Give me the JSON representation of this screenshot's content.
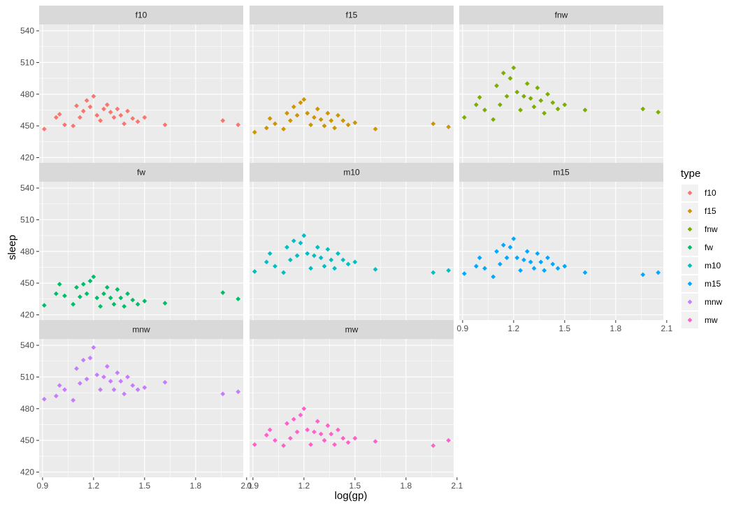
{
  "chart_data": {
    "type": "scatter",
    "xlabel": "log(gp)",
    "ylabel": "sleep",
    "xlim": [
      0.88,
      2.08
    ],
    "ylim": [
      415,
      546
    ],
    "xticks": [
      0.9,
      1.2,
      1.5,
      1.8,
      2.1
    ],
    "xtick_labels": [
      "0.9",
      "1.2",
      "1.5",
      "1.8",
      "2.1"
    ],
    "yticks": [
      420,
      450,
      480,
      510,
      540
    ],
    "ytick_labels": [
      "420",
      "450",
      "480",
      "510",
      "540"
    ],
    "grid": true,
    "facet_panels": [
      "f10",
      "f15",
      "fnw",
      "fw",
      "m10",
      "m15",
      "mnw",
      "mw"
    ],
    "legend": {
      "title": "type",
      "position": "right"
    },
    "series": [
      {
        "name": "f10",
        "color": "#F8766D",
        "points": [
          [
            0.91,
            447
          ],
          [
            0.98,
            458
          ],
          [
            1.0,
            461
          ],
          [
            1.03,
            451
          ],
          [
            1.08,
            450
          ],
          [
            1.1,
            469
          ],
          [
            1.12,
            458
          ],
          [
            1.14,
            464
          ],
          [
            1.16,
            474
          ],
          [
            1.18,
            468
          ],
          [
            1.2,
            478
          ],
          [
            1.22,
            460
          ],
          [
            1.24,
            455
          ],
          [
            1.26,
            466
          ],
          [
            1.28,
            470
          ],
          [
            1.3,
            463
          ],
          [
            1.32,
            458
          ],
          [
            1.34,
            466
          ],
          [
            1.36,
            460
          ],
          [
            1.38,
            452
          ],
          [
            1.4,
            464
          ],
          [
            1.43,
            457
          ],
          [
            1.46,
            454
          ],
          [
            1.5,
            458
          ],
          [
            1.62,
            451
          ],
          [
            1.96,
            455
          ],
          [
            2.05,
            451
          ]
        ]
      },
      {
        "name": "f15",
        "color": "#CD9600",
        "points": [
          [
            0.91,
            444
          ],
          [
            0.98,
            448
          ],
          [
            1.0,
            457
          ],
          [
            1.03,
            452
          ],
          [
            1.08,
            447
          ],
          [
            1.1,
            462
          ],
          [
            1.12,
            455
          ],
          [
            1.14,
            468
          ],
          [
            1.16,
            460
          ],
          [
            1.18,
            472
          ],
          [
            1.2,
            475
          ],
          [
            1.22,
            462
          ],
          [
            1.24,
            451
          ],
          [
            1.26,
            458
          ],
          [
            1.28,
            466
          ],
          [
            1.3,
            456
          ],
          [
            1.32,
            450
          ],
          [
            1.34,
            462
          ],
          [
            1.36,
            455
          ],
          [
            1.38,
            448
          ],
          [
            1.4,
            460
          ],
          [
            1.43,
            455
          ],
          [
            1.46,
            451
          ],
          [
            1.5,
            453
          ],
          [
            1.62,
            447
          ],
          [
            1.96,
            452
          ],
          [
            2.05,
            449
          ]
        ]
      },
      {
        "name": "fnw",
        "color": "#7CAE00",
        "points": [
          [
            0.91,
            458
          ],
          [
            0.98,
            470
          ],
          [
            1.0,
            477
          ],
          [
            1.03,
            465
          ],
          [
            1.08,
            456
          ],
          [
            1.1,
            488
          ],
          [
            1.12,
            470
          ],
          [
            1.14,
            500
          ],
          [
            1.16,
            478
          ],
          [
            1.18,
            495
          ],
          [
            1.2,
            505
          ],
          [
            1.22,
            482
          ],
          [
            1.24,
            465
          ],
          [
            1.26,
            478
          ],
          [
            1.28,
            490
          ],
          [
            1.3,
            476
          ],
          [
            1.32,
            468
          ],
          [
            1.34,
            486
          ],
          [
            1.36,
            474
          ],
          [
            1.38,
            462
          ],
          [
            1.4,
            480
          ],
          [
            1.43,
            472
          ],
          [
            1.46,
            466
          ],
          [
            1.5,
            470
          ],
          [
            1.62,
            465
          ],
          [
            1.96,
            466
          ],
          [
            2.05,
            463
          ]
        ]
      },
      {
        "name": "fw",
        "color": "#00BE67",
        "points": [
          [
            0.91,
            429
          ],
          [
            0.98,
            440
          ],
          [
            1.0,
            449
          ],
          [
            1.03,
            438
          ],
          [
            1.08,
            430
          ],
          [
            1.1,
            446
          ],
          [
            1.12,
            437
          ],
          [
            1.14,
            449
          ],
          [
            1.16,
            440
          ],
          [
            1.18,
            452
          ],
          [
            1.2,
            456
          ],
          [
            1.22,
            436
          ],
          [
            1.24,
            428
          ],
          [
            1.26,
            440
          ],
          [
            1.28,
            446
          ],
          [
            1.3,
            436
          ],
          [
            1.32,
            430
          ],
          [
            1.34,
            444
          ],
          [
            1.36,
            436
          ],
          [
            1.38,
            428
          ],
          [
            1.4,
            440
          ],
          [
            1.43,
            434
          ],
          [
            1.46,
            430
          ],
          [
            1.5,
            433
          ],
          [
            1.62,
            431
          ],
          [
            1.96,
            441
          ],
          [
            2.05,
            435
          ]
        ]
      },
      {
        "name": "m10",
        "color": "#00BFC4",
        "points": [
          [
            0.91,
            461
          ],
          [
            0.98,
            470
          ],
          [
            1.0,
            478
          ],
          [
            1.03,
            466
          ],
          [
            1.08,
            460
          ],
          [
            1.1,
            484
          ],
          [
            1.12,
            472
          ],
          [
            1.14,
            490
          ],
          [
            1.16,
            476
          ],
          [
            1.18,
            488
          ],
          [
            1.2,
            495
          ],
          [
            1.22,
            478
          ],
          [
            1.24,
            464
          ],
          [
            1.26,
            476
          ],
          [
            1.28,
            484
          ],
          [
            1.3,
            474
          ],
          [
            1.32,
            466
          ],
          [
            1.34,
            482
          ],
          [
            1.36,
            472
          ],
          [
            1.38,
            464
          ],
          [
            1.4,
            478
          ],
          [
            1.43,
            472
          ],
          [
            1.46,
            468
          ],
          [
            1.5,
            470
          ],
          [
            1.62,
            463
          ],
          [
            1.96,
            460
          ],
          [
            2.05,
            462
          ]
        ]
      },
      {
        "name": "m15",
        "color": "#00A9FF",
        "points": [
          [
            0.91,
            459
          ],
          [
            0.98,
            466
          ],
          [
            1.0,
            474
          ],
          [
            1.03,
            464
          ],
          [
            1.08,
            456
          ],
          [
            1.1,
            480
          ],
          [
            1.12,
            468
          ],
          [
            1.14,
            486
          ],
          [
            1.16,
            474
          ],
          [
            1.18,
            484
          ],
          [
            1.2,
            492
          ],
          [
            1.22,
            474
          ],
          [
            1.24,
            462
          ],
          [
            1.26,
            472
          ],
          [
            1.28,
            480
          ],
          [
            1.3,
            470
          ],
          [
            1.32,
            464
          ],
          [
            1.34,
            478
          ],
          [
            1.36,
            470
          ],
          [
            1.38,
            462
          ],
          [
            1.4,
            474
          ],
          [
            1.43,
            468
          ],
          [
            1.46,
            464
          ],
          [
            1.5,
            466
          ],
          [
            1.62,
            460
          ],
          [
            1.96,
            458
          ],
          [
            2.05,
            460
          ]
        ]
      },
      {
        "name": "mnw",
        "color": "#C77CFF",
        "points": [
          [
            0.91,
            489
          ],
          [
            0.98,
            492
          ],
          [
            1.0,
            502
          ],
          [
            1.03,
            498
          ],
          [
            1.08,
            488
          ],
          [
            1.1,
            518
          ],
          [
            1.12,
            504
          ],
          [
            1.14,
            526
          ],
          [
            1.16,
            508
          ],
          [
            1.18,
            528
          ],
          [
            1.2,
            538
          ],
          [
            1.22,
            512
          ],
          [
            1.24,
            498
          ],
          [
            1.26,
            510
          ],
          [
            1.28,
            520
          ],
          [
            1.3,
            506
          ],
          [
            1.32,
            498
          ],
          [
            1.34,
            514
          ],
          [
            1.36,
            506
          ],
          [
            1.38,
            494
          ],
          [
            1.4,
            510
          ],
          [
            1.43,
            502
          ],
          [
            1.46,
            498
          ],
          [
            1.5,
            500
          ],
          [
            1.62,
            505
          ],
          [
            1.96,
            494
          ],
          [
            2.05,
            496
          ]
        ]
      },
      {
        "name": "mw",
        "color": "#FF61CC",
        "points": [
          [
            0.91,
            446
          ],
          [
            0.98,
            455
          ],
          [
            1.0,
            460
          ],
          [
            1.03,
            450
          ],
          [
            1.08,
            445
          ],
          [
            1.1,
            466
          ],
          [
            1.12,
            452
          ],
          [
            1.14,
            470
          ],
          [
            1.16,
            458
          ],
          [
            1.18,
            474
          ],
          [
            1.2,
            480
          ],
          [
            1.22,
            460
          ],
          [
            1.24,
            446
          ],
          [
            1.26,
            458
          ],
          [
            1.28,
            468
          ],
          [
            1.3,
            456
          ],
          [
            1.32,
            450
          ],
          [
            1.34,
            464
          ],
          [
            1.36,
            456
          ],
          [
            1.38,
            446
          ],
          [
            1.4,
            460
          ],
          [
            1.43,
            452
          ],
          [
            1.46,
            448
          ],
          [
            1.5,
            452
          ],
          [
            1.62,
            449
          ],
          [
            1.96,
            445
          ],
          [
            2.05,
            450
          ]
        ]
      }
    ]
  }
}
